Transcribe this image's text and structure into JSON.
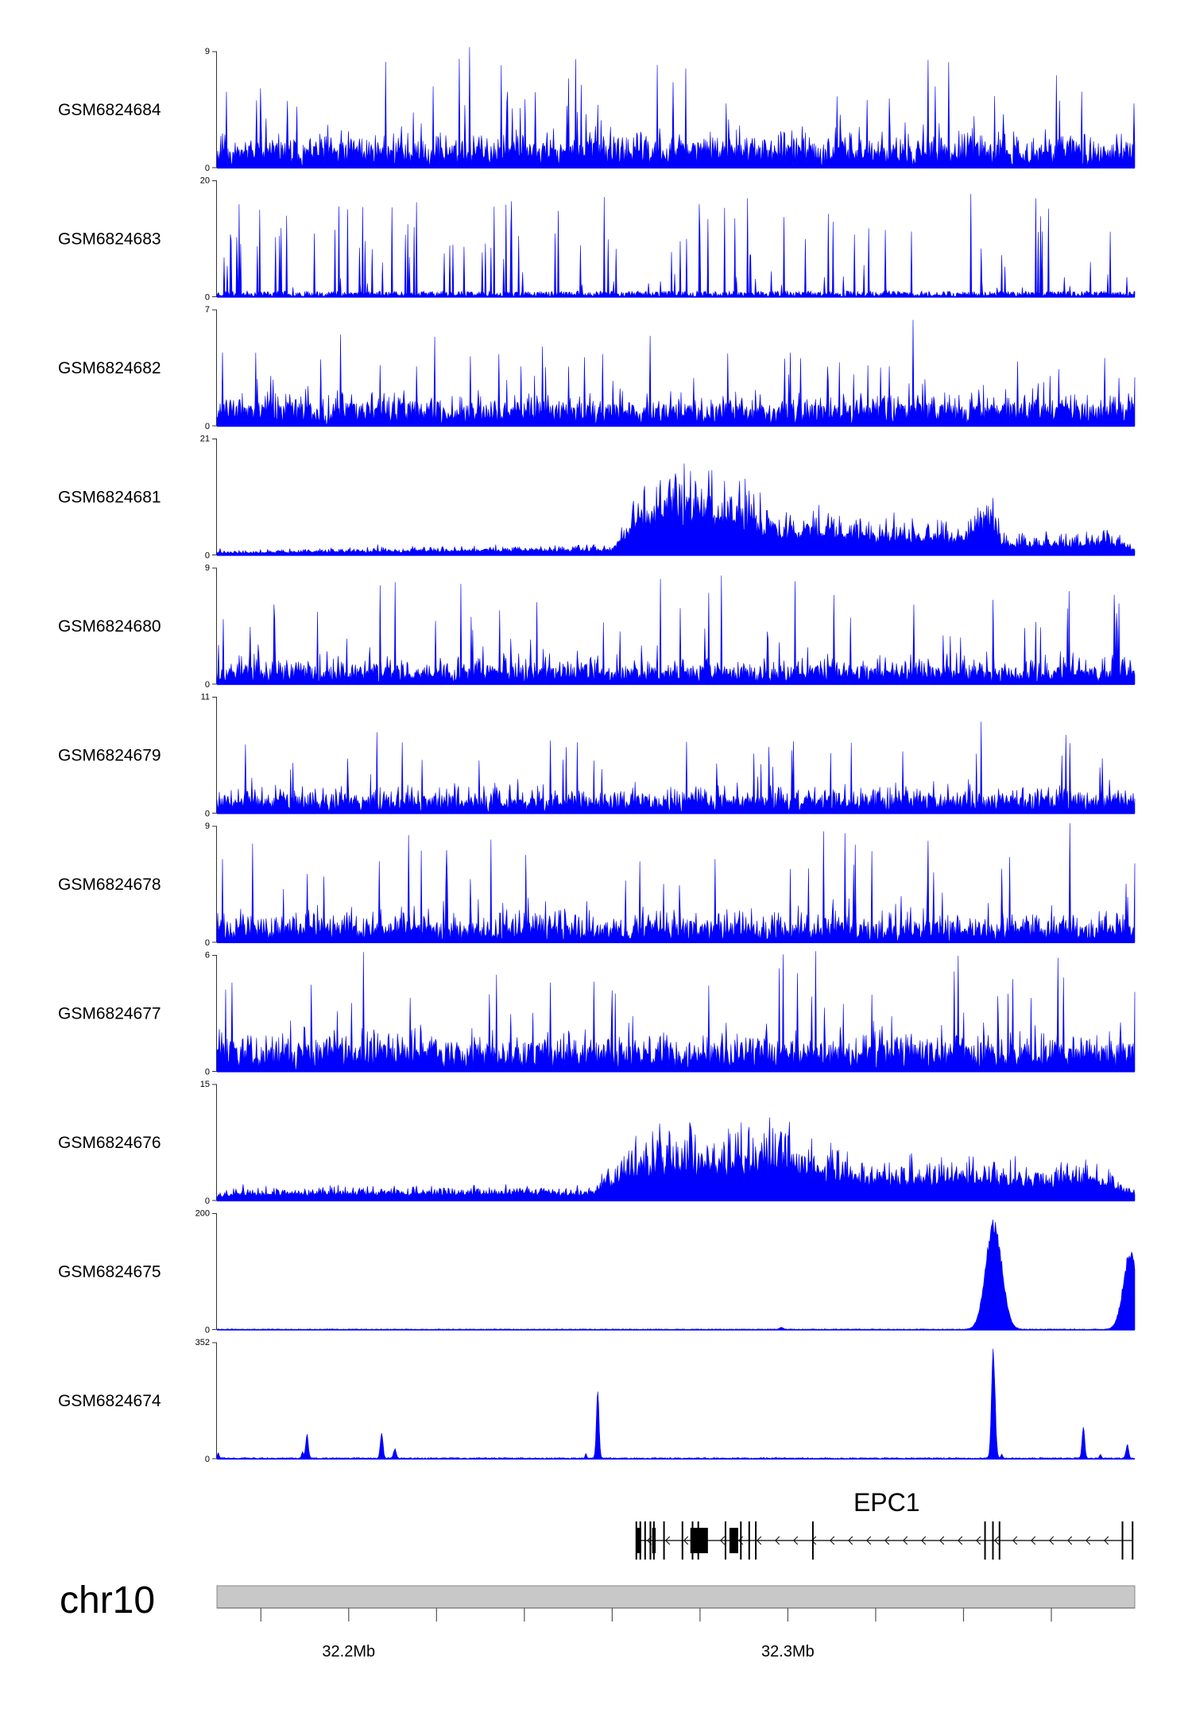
{
  "chart_data": {
    "type": "area",
    "title": "",
    "chromosome": "chr10",
    "xlim_mb": [
      32.17,
      32.379
    ],
    "x_ticks_mb": [
      32.18,
      32.2,
      32.22,
      32.24,
      32.26,
      32.28,
      32.3,
      32.32,
      32.34,
      32.36
    ],
    "x_tick_labels": [
      {
        "mb": 32.2,
        "label": "32.2Mb"
      },
      {
        "mb": 32.3,
        "label": "32.3Mb"
      }
    ],
    "series_color": "#0000ff",
    "tracks": [
      {
        "name": "GSM6824684",
        "ylim": [
          0,
          9
        ],
        "ymax_label": "9",
        "ymin_label": "0",
        "profile": "noise",
        "base": 0.18,
        "var": 0.22,
        "spike": 0.85,
        "seed": 11
      },
      {
        "name": "GSM6824683",
        "ylim": [
          0,
          20
        ],
        "ymax_label": "20",
        "ymin_label": "0",
        "profile": "spikes",
        "base": 0.05,
        "var": 0.05,
        "spike": 0.85,
        "seed": 23
      },
      {
        "name": "GSM6824682",
        "ylim": [
          0,
          7
        ],
        "ymax_label": "7",
        "ymin_label": "0",
        "profile": "noise",
        "base": 0.18,
        "var": 0.18,
        "spike": 0.62,
        "seed": 37
      },
      {
        "name": "GSM6824681",
        "ylim": [
          0,
          21
        ],
        "ymax_label": "21",
        "ymin_label": "0",
        "profile": "domain",
        "seed": 41,
        "levels_mb": [
          [
            32.17,
            0.03
          ],
          [
            32.2,
            0.05
          ],
          [
            32.26,
            0.07
          ],
          [
            32.265,
            0.45
          ],
          [
            32.27,
            0.6
          ],
          [
            32.28,
            0.62
          ],
          [
            32.29,
            0.5
          ],
          [
            32.298,
            0.3
          ],
          [
            32.31,
            0.32
          ],
          [
            32.32,
            0.26
          ],
          [
            32.33,
            0.24
          ],
          [
            32.34,
            0.22
          ],
          [
            32.346,
            0.5
          ],
          [
            32.349,
            0.15
          ],
          [
            32.37,
            0.15
          ],
          [
            32.373,
            0.22
          ],
          [
            32.378,
            0.08
          ]
        ]
      },
      {
        "name": "GSM6824680",
        "ylim": [
          0,
          9
        ],
        "ymax_label": "9",
        "ymin_label": "0",
        "profile": "noise",
        "base": 0.12,
        "var": 0.2,
        "spike": 0.8,
        "seed": 53
      },
      {
        "name": "GSM6824679",
        "ylim": [
          0,
          11
        ],
        "ymax_label": "11",
        "ymin_label": "0",
        "profile": "noise",
        "base": 0.12,
        "var": 0.18,
        "spike": 0.6,
        "seed": 61
      },
      {
        "name": "GSM6824678",
        "ylim": [
          0,
          9
        ],
        "ymax_label": "9",
        "ymin_label": "0",
        "profile": "noise",
        "base": 0.12,
        "var": 0.25,
        "spike": 0.9,
        "seed": 71
      },
      {
        "name": "GSM6824677",
        "ylim": [
          0,
          6
        ],
        "ymax_label": "6",
        "ymin_label": "0",
        "profile": "noise",
        "base": 0.22,
        "var": 0.25,
        "spike": 0.8,
        "seed": 83
      },
      {
        "name": "GSM6824676",
        "ylim": [
          0,
          15
        ],
        "ymax_label": "15",
        "ymin_label": "0",
        "profile": "domain",
        "seed": 97,
        "levels_mb": [
          [
            32.17,
            0.08
          ],
          [
            32.2,
            0.1
          ],
          [
            32.25,
            0.1
          ],
          [
            32.255,
            0.1
          ],
          [
            32.262,
            0.35
          ],
          [
            32.27,
            0.52
          ],
          [
            32.28,
            0.55
          ],
          [
            32.29,
            0.5
          ],
          [
            32.3,
            0.55
          ],
          [
            32.31,
            0.38
          ],
          [
            32.32,
            0.3
          ],
          [
            32.33,
            0.3
          ],
          [
            32.34,
            0.32
          ],
          [
            32.35,
            0.28
          ],
          [
            32.36,
            0.26
          ],
          [
            32.37,
            0.3
          ],
          [
            32.378,
            0.1
          ]
        ]
      },
      {
        "name": "GSM6824675",
        "ylim": [
          0,
          200
        ],
        "ymax_label": "200",
        "ymin_label": "0",
        "profile": "peaks",
        "seed": 101,
        "noise": 0.006,
        "peaks": [
          {
            "mb": 32.3469,
            "height": 0.98,
            "width_mb": 0.0018
          },
          {
            "mb": 32.378,
            "height": 0.7,
            "width_mb": 0.0016
          },
          {
            "mb": 32.2985,
            "height": 0.02,
            "width_mb": 0.0004
          }
        ]
      },
      {
        "name": "GSM6824674",
        "ylim": [
          0,
          352
        ],
        "ymax_label": "352",
        "ymin_label": "0",
        "profile": "peaks",
        "seed": 113,
        "noise": 0.01,
        "peaks": [
          {
            "mb": 32.1703,
            "height": 0.05,
            "width_mb": 0.0002
          },
          {
            "mb": 32.1895,
            "height": 0.06,
            "width_mb": 0.0002
          },
          {
            "mb": 32.1905,
            "height": 0.22,
            "width_mb": 0.0003
          },
          {
            "mb": 32.2075,
            "height": 0.24,
            "width_mb": 0.0003
          },
          {
            "mb": 32.2105,
            "height": 0.08,
            "width_mb": 0.0003
          },
          {
            "mb": 32.254,
            "height": 0.04,
            "width_mb": 0.0002
          },
          {
            "mb": 32.2567,
            "height": 0.6,
            "width_mb": 0.0003
          },
          {
            "mb": 32.3468,
            "height": 0.99,
            "width_mb": 0.0004
          },
          {
            "mb": 32.3487,
            "height": 0.04,
            "width_mb": 0.0002
          },
          {
            "mb": 32.3673,
            "height": 0.28,
            "width_mb": 0.0003
          },
          {
            "mb": 32.3712,
            "height": 0.04,
            "width_mb": 0.0002
          },
          {
            "mb": 32.3773,
            "height": 0.13,
            "width_mb": 0.0003
          }
        ]
      }
    ],
    "gene": {
      "name": "EPC1",
      "strand": "-",
      "start_mb": 32.2655,
      "end_mb": 32.3785,
      "exons_mb": [
        32.2655,
        32.2664,
        32.2675,
        32.2687,
        32.2695,
        32.2718,
        32.276,
        32.2783,
        32.2796,
        32.2858,
        32.2893,
        32.2912,
        32.2927,
        32.3057,
        32.3449,
        32.3467,
        32.3482,
        32.3762,
        32.3785
      ],
      "thick_blocks_mb": [
        [
          32.2655,
          32.2666
        ],
        [
          32.2691,
          32.2699
        ],
        [
          32.2778,
          32.2813
        ],
        [
          32.2797,
          32.2818
        ],
        [
          32.2867,
          32.2887
        ]
      ]
    }
  }
}
